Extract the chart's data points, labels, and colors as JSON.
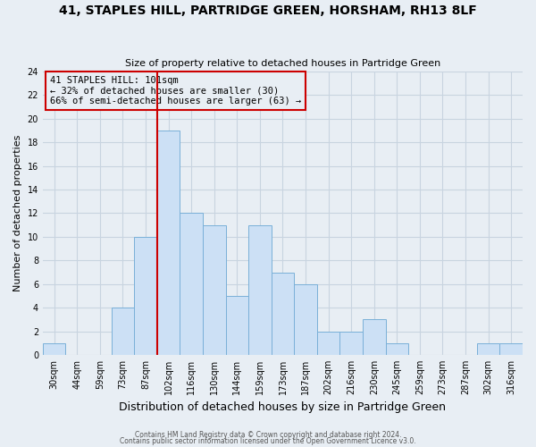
{
  "title": "41, STAPLES HILL, PARTRIDGE GREEN, HORSHAM, RH13 8LF",
  "subtitle": "Size of property relative to detached houses in Partridge Green",
  "xlabel": "Distribution of detached houses by size in Partridge Green",
  "ylabel": "Number of detached properties",
  "bin_labels": [
    "30sqm",
    "44sqm",
    "59sqm",
    "73sqm",
    "87sqm",
    "102sqm",
    "116sqm",
    "130sqm",
    "144sqm",
    "159sqm",
    "173sqm",
    "187sqm",
    "202sqm",
    "216sqm",
    "230sqm",
    "245sqm",
    "259sqm",
    "273sqm",
    "287sqm",
    "302sqm",
    "316sqm"
  ],
  "bar_values": [
    1,
    0,
    0,
    4,
    10,
    19,
    12,
    11,
    5,
    11,
    7,
    6,
    2,
    2,
    3,
    1,
    0,
    0,
    0,
    1,
    1
  ],
  "bar_color": "#cce0f5",
  "bar_edge_color": "#7ab0d8",
  "reference_line_x": 4.5,
  "reference_line_color": "#cc0000",
  "annotation_text": "41 STAPLES HILL: 101sqm\n← 32% of detached houses are smaller (30)\n66% of semi-detached houses are larger (63) →",
  "annotation_box_edge_color": "#cc0000",
  "ylim": [
    0,
    24
  ],
  "yticks": [
    0,
    2,
    4,
    6,
    8,
    10,
    12,
    14,
    16,
    18,
    20,
    22,
    24
  ],
  "footer_line1": "Contains HM Land Registry data © Crown copyright and database right 2024.",
  "footer_line2": "Contains public sector information licensed under the Open Government Licence v3.0.",
  "bg_color": "#e8eef4",
  "grid_color": "#c8d4e0",
  "title_fontsize": 10,
  "subtitle_fontsize": 8,
  "xlabel_fontsize": 9,
  "ylabel_fontsize": 8,
  "tick_fontsize": 7,
  "annotation_fontsize": 7.5
}
